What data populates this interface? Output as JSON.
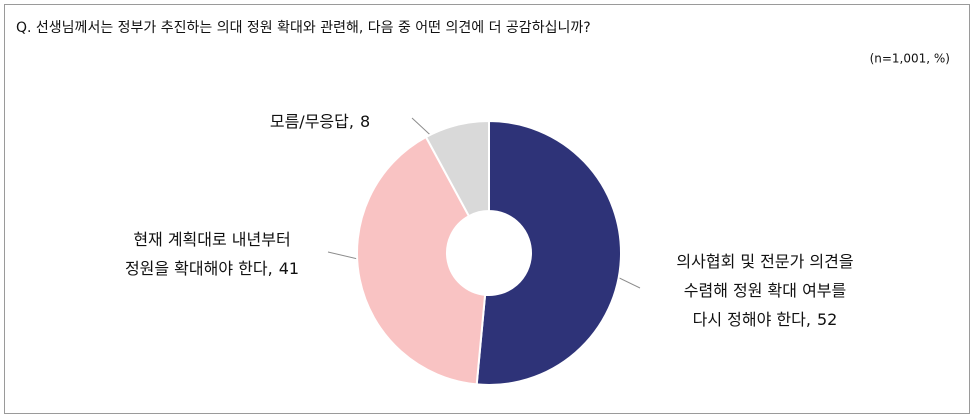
{
  "chart_data": {
    "type": "donut",
    "title": "Q. 선생님께서는 정부가 추진하는 의대 정원 확대와 관련해, 다음 중 어떤 의견에 더 공감하십니까?",
    "note": "(n=1,001, %)",
    "categories": [
      [
        "의사협회 및 전문가 의견을",
        "수렴해 정원 확대 여부를",
        "다시 정해야 한다,"
      ],
      [
        "현재 계획대로 내년부터",
        "정원을 확대해야 한다,"
      ],
      [
        "모름/무응답,"
      ]
    ],
    "values": [
      52,
      41,
      8
    ],
    "colors": [
      "#2e3378",
      "#f9c3c3",
      "#d9d9d9"
    ]
  }
}
